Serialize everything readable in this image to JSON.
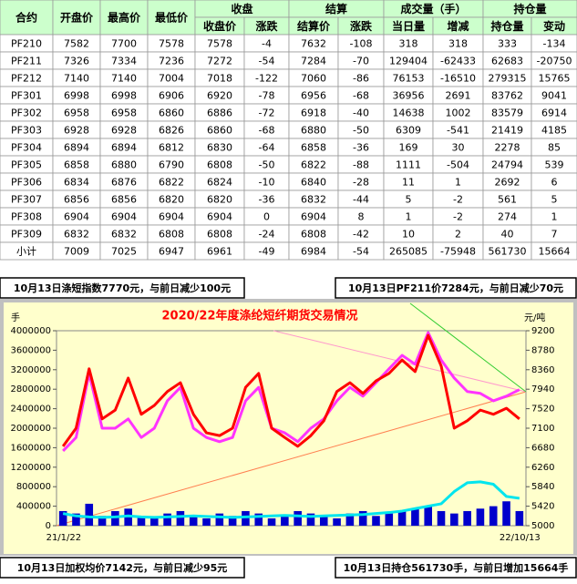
{
  "table": {
    "header_top": [
      "合约",
      "开盘价",
      "最高价",
      "最低价",
      "收盘",
      "结算",
      "成交量（手）",
      "持仓量"
    ],
    "header_sub": [
      "收盘价",
      "涨跌",
      "结算价",
      "涨跌",
      "当日量",
      "增减",
      "持仓量",
      "变动"
    ],
    "rows": [
      [
        "PF210",
        7582,
        7700,
        7578,
        7578,
        -4,
        7632,
        -108,
        318,
        318,
        333,
        -134
      ],
      [
        "PF211",
        7326,
        7334,
        7236,
        7272,
        -54,
        7284,
        -70,
        129404,
        -62433,
        62683,
        -20750
      ],
      [
        "PF212",
        7140,
        7140,
        7004,
        7018,
        -122,
        7060,
        -86,
        76153,
        -16510,
        279315,
        15765
      ],
      [
        "PF301",
        6998,
        6998,
        6906,
        6920,
        -78,
        6956,
        -68,
        36956,
        2691,
        83762,
        9041
      ],
      [
        "PF302",
        6958,
        6958,
        6860,
        6886,
        -72,
        6918,
        -40,
        14638,
        1002,
        83579,
        6914
      ],
      [
        "PF303",
        6928,
        6928,
        6826,
        6860,
        -68,
        6880,
        -50,
        6309,
        -541,
        21419,
        4185
      ],
      [
        "PF304",
        6894,
        6894,
        6812,
        6830,
        -64,
        6858,
        -36,
        169,
        30,
        2278,
        85
      ],
      [
        "PF305",
        6858,
        6880,
        6790,
        6808,
        -50,
        6822,
        -88,
        1111,
        -504,
        24794,
        539
      ],
      [
        "PF306",
        6834,
        6876,
        6822,
        6824,
        -10,
        6840,
        -28,
        11,
        1,
        2692,
        6
      ],
      [
        "PF307",
        6856,
        6856,
        6820,
        6820,
        -36,
        6832,
        -44,
        5,
        -2,
        561,
        5
      ],
      [
        "PF308",
        6904,
        6904,
        6904,
        6904,
        0,
        6904,
        8,
        1,
        -2,
        274,
        1
      ],
      [
        "PF309",
        6832,
        6832,
        6808,
        6808,
        -24,
        6808,
        -42,
        10,
        2,
        40,
        7
      ],
      [
        "小计",
        7009,
        7025,
        6947,
        6961,
        -49,
        6984,
        -54,
        265085,
        -75948,
        561730,
        15664
      ]
    ]
  },
  "notes": {
    "top_left": "10月13日涤短指数7770元，与前日减少100元",
    "top_right": "10月13日PF211价7284元，与前日减少70元",
    "bottom_left": "10月13日加权均价7142元，与前日减少95元",
    "bottom_right": "10月13日持仓561730手，与前日增加15664手"
  },
  "chart_data": {
    "type": "line",
    "title": "2020/22年度涤纶短纤期货交易情况",
    "ylabel": "手",
    "y2label": "元/吨",
    "categories": [
      "21/1/22",
      null,
      null,
      null,
      null,
      null,
      null,
      null,
      null,
      null,
      null,
      null,
      null,
      null,
      null,
      null,
      null,
      null,
      null,
      null,
      null,
      null,
      null,
      null,
      null,
      null,
      null,
      null,
      null,
      null,
      null,
      null,
      null,
      null,
      null,
      "22/10/13"
    ],
    "ylim": [
      0,
      4000000
    ],
    "yticks": [
      0,
      400000,
      800000,
      1200000,
      1600000,
      2000000,
      2400000,
      2800000,
      3200000,
      3600000,
      4000000
    ],
    "y2lim": [
      5000,
      9200
    ],
    "y2ticks": [
      5000,
      5420,
      5840,
      6260,
      6680,
      7100,
      7520,
      7940,
      8360,
      8780,
      9200
    ],
    "series": [
      {
        "type": "bar",
        "color": "#0000cc",
        "values": [
          300000,
          250000,
          450000,
          200000,
          300000,
          350000,
          200000,
          150000,
          250000,
          300000,
          200000,
          150000,
          250000,
          200000,
          300000,
          250000,
          150000,
          200000,
          300000,
          250000,
          200000,
          150000,
          250000,
          300000,
          200000,
          250000,
          300000,
          350000,
          400000,
          300000,
          250000,
          300000,
          350000,
          400000,
          500000,
          300000
        ]
      },
      {
        "type": "line",
        "color": "#00e5ee",
        "values": [
          250000,
          200000,
          180000,
          170000,
          180000,
          200000,
          180000,
          170000,
          180000,
          190000,
          200000,
          190000,
          180000,
          170000,
          180000,
          190000,
          200000,
          210000,
          200000,
          190000,
          200000,
          210000,
          220000,
          230000,
          250000,
          270000,
          300000,
          350000,
          400000,
          450000,
          700000,
          880000,
          900000,
          850000,
          600000,
          561730
        ]
      },
      {
        "type": "line",
        "color": "#ff33ff",
        "axis": "y2",
        "values": [
          6610,
          6900,
          8280,
          7100,
          7100,
          7300,
          6900,
          7100,
          7690,
          7980,
          7100,
          6900,
          6810,
          6900,
          7690,
          7980,
          7100,
          7000,
          6810,
          7100,
          7300,
          7690,
          7980,
          7790,
          8080,
          8380,
          8670,
          8480,
          9160,
          8570,
          8180,
          7890,
          7850,
          7690,
          7790,
          7930
        ]
      },
      {
        "type": "line",
        "color": "#ff0000",
        "axis": "y2",
        "values": [
          6710,
          7100,
          8380,
          7300,
          7490,
          8180,
          7400,
          7590,
          7890,
          8080,
          7400,
          7000,
          6940,
          7100,
          7980,
          8280,
          7100,
          6900,
          6710,
          6940,
          7260,
          7890,
          8080,
          7850,
          8120,
          8280,
          8570,
          8320,
          9100,
          8440,
          7100,
          7260,
          7490,
          7400,
          7530,
          7300
        ]
      }
    ]
  }
}
